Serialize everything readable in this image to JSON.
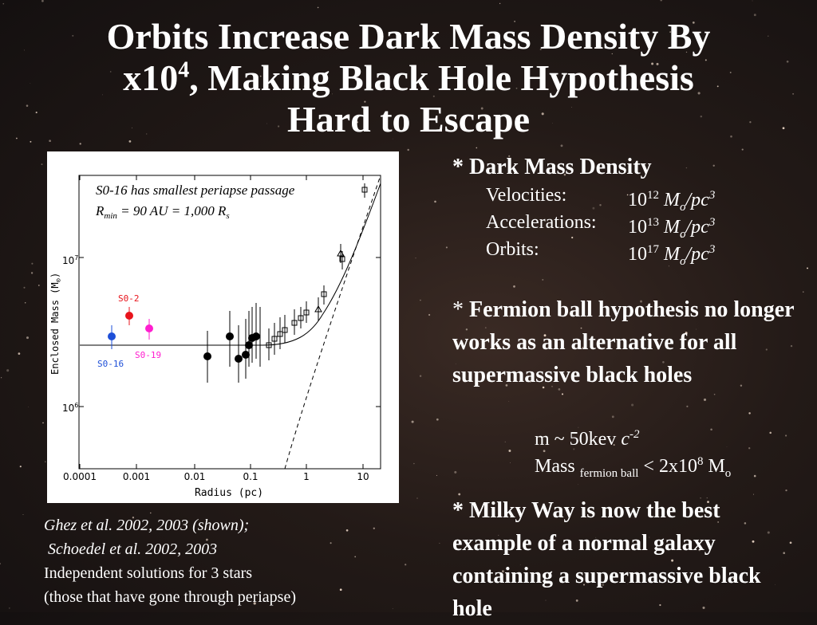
{
  "slide": {
    "title_part1": "Orbits Increase Dark Mass Density By",
    "title_part2a": "x10",
    "title_exp": "4",
    "title_part2b": ", Making Black Hole Hypothesis",
    "title_part3": "Hard to Escape"
  },
  "plot": {
    "annotation_line1": "S0-16 has smallest periapse passage",
    "annotation_line2_prefix": "R",
    "annotation_line2_sub": "min",
    "annotation_line2_mid": " = 90 AU = 1,000 R",
    "annotation_line2_sub2": "s",
    "ylabel_main": "Enclosed Mass (M",
    "ylabel_sub": "⊙",
    "ylabel_end": ")",
    "xlabel": "Radius (pc)",
    "xticks": [
      "0.0001",
      "0.001",
      "0.01",
      "0.1",
      "1",
      "10"
    ],
    "yticks": {
      "upper_base": "10",
      "upper_exp": "7",
      "lower_base": "10",
      "lower_exp": "6"
    },
    "star_labels": {
      "s02": "S0-2",
      "s016": "S0-16",
      "s019": "S0-19"
    },
    "colors": {
      "s02": "#e8141c",
      "s016": "#1e4fd8",
      "s019": "#ff1ecf"
    }
  },
  "caption": {
    "line1": "Ghez et al. 2002, 2003 (shown);",
    "line2": " Schoedel et al. 2002, 2003",
    "line3": "Independent solutions for 3 stars",
    "line4": "(those that have gone through periapse)"
  },
  "right": {
    "bullet1_heading": "* Dark Mass Density",
    "rows": [
      {
        "label": "Velocities:",
        "base": "10",
        "exp": "12",
        "unit_m": "M",
        "unit_sub": "o",
        "unit_rest": "/pc",
        "unit_exp": "3"
      },
      {
        "label": "Accelerations:",
        "base": "10",
        "exp": "13",
        "unit_m": "M",
        "unit_sub": "o",
        "unit_rest": "/pc",
        "unit_exp": "3"
      },
      {
        "label": "Orbits:",
        "base": "10",
        "exp": "17",
        "unit_m": "M",
        "unit_sub": "o",
        "unit_rest": "/pc",
        "unit_exp": "3"
      }
    ],
    "bullet2_star": "* ",
    "bullet2_text": "Fermion ball hypothesis no longer works as an alternative for all supermassive black holes",
    "mass_line1_a": "m ~ 50kev ",
    "mass_line1_c": "c",
    "mass_line1_exp": "-2",
    "mass_line2_a": "Mass ",
    "mass_line2_sub": "fermion ball",
    "mass_line2_b": " <  2x10",
    "mass_line2_exp": "8",
    "mass_line2_c": " M",
    "mass_line2_sub2": "o",
    "bullet3_text": "* Milky Way is now the best example of a normal galaxy containing a supermassive black hole"
  }
}
